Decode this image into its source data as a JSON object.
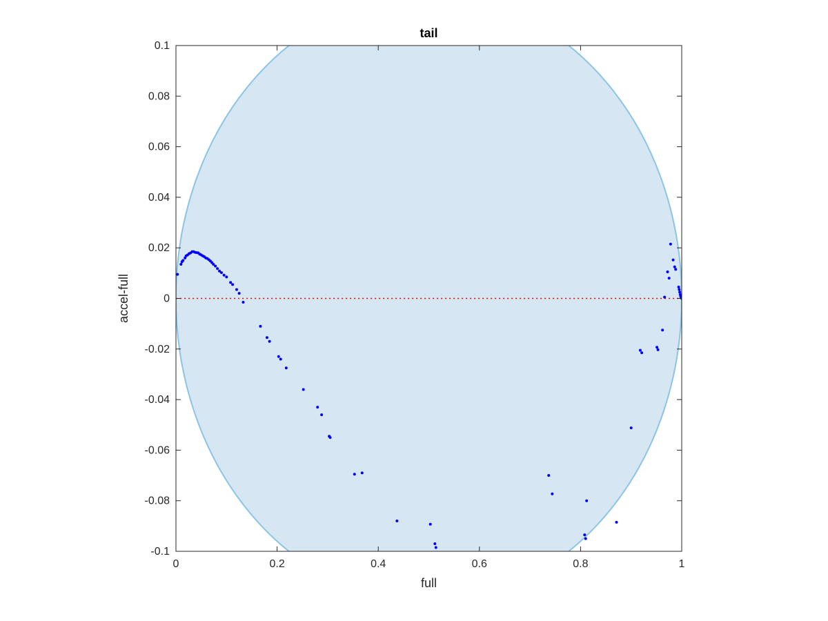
{
  "chart_data": {
    "type": "scatter",
    "title": "tail",
    "xlabel": "full",
    "ylabel": "accel-full",
    "xlim": [
      0,
      1
    ],
    "ylim": [
      -0.1,
      0.1
    ],
    "xticks": [
      0,
      0.2,
      0.4,
      0.6,
      0.8,
      1
    ],
    "xtick_labels": [
      "0",
      "0.2",
      "0.4",
      "0.6",
      "0.8",
      "1"
    ],
    "yticks": [
      0.1,
      0.08,
      0.06,
      0.04,
      0.02,
      0,
      -0.02,
      -0.04,
      -0.06,
      -0.08,
      -0.1
    ],
    "ytick_labels": [
      "0.1",
      "0.08",
      "0.06",
      "0.04",
      "0.02",
      "0",
      "-0.02",
      "-0.04",
      "-0.06",
      "-0.08",
      "-0.1"
    ],
    "grid": false,
    "reference_line": {
      "y": 0,
      "style": "dotted",
      "color": "#ff0000"
    },
    "region": {
      "shape": "ellipse",
      "center": [
        0.5,
        0
      ],
      "semi_axes": [
        0.5,
        0.12
      ],
      "fill_color": "#d6e6f3",
      "edge_color": "#8cc4e6"
    },
    "marker_color": "#0000ff",
    "points": [
      [
        0.003,
        0.0095
      ],
      [
        0.01,
        0.0135
      ],
      [
        0.012,
        0.0145
      ],
      [
        0.014,
        0.015
      ],
      [
        0.018,
        0.016
      ],
      [
        0.02,
        0.0168
      ],
      [
        0.023,
        0.0172
      ],
      [
        0.026,
        0.0177
      ],
      [
        0.029,
        0.018
      ],
      [
        0.032,
        0.0185
      ],
      [
        0.035,
        0.0185
      ],
      [
        0.038,
        0.0182
      ],
      [
        0.041,
        0.0181
      ],
      [
        0.044,
        0.018
      ],
      [
        0.047,
        0.0175
      ],
      [
        0.05,
        0.0172
      ],
      [
        0.053,
        0.0168
      ],
      [
        0.056,
        0.0165
      ],
      [
        0.059,
        0.016
      ],
      [
        0.062,
        0.0158
      ],
      [
        0.065,
        0.0153
      ],
      [
        0.068,
        0.0148
      ],
      [
        0.071,
        0.0142
      ],
      [
        0.074,
        0.0135
      ],
      [
        0.078,
        0.0128
      ],
      [
        0.082,
        0.0118
      ],
      [
        0.086,
        0.0108
      ],
      [
        0.09,
        0.0102
      ],
      [
        0.095,
        0.0092
      ],
      [
        0.1,
        0.0085
      ],
      [
        0.108,
        0.0063
      ],
      [
        0.112,
        0.0055
      ],
      [
        0.12,
        0.0035
      ],
      [
        0.125,
        0.002
      ],
      [
        0.133,
        -0.0015
      ],
      [
        0.167,
        -0.011
      ],
      [
        0.18,
        -0.0155
      ],
      [
        0.185,
        -0.017
      ],
      [
        0.203,
        -0.023
      ],
      [
        0.207,
        -0.024
      ],
      [
        0.218,
        -0.0275
      ],
      [
        0.252,
        -0.036
      ],
      [
        0.28,
        -0.043
      ],
      [
        0.288,
        -0.046
      ],
      [
        0.303,
        -0.0545
      ],
      [
        0.305,
        -0.055
      ],
      [
        0.353,
        -0.0695
      ],
      [
        0.368,
        -0.069
      ],
      [
        0.437,
        -0.088
      ],
      [
        0.503,
        -0.0893
      ],
      [
        0.512,
        -0.097
      ],
      [
        0.514,
        -0.0985
      ],
      [
        0.737,
        -0.07
      ],
      [
        0.744,
        -0.0773
      ],
      [
        0.808,
        -0.0935
      ],
      [
        0.81,
        -0.095
      ],
      [
        0.812,
        -0.08
      ],
      [
        0.871,
        -0.0885
      ],
      [
        0.9,
        -0.0512
      ],
      [
        0.918,
        -0.0205
      ],
      [
        0.921,
        -0.0215
      ],
      [
        0.951,
        -0.0193
      ],
      [
        0.953,
        -0.0203
      ],
      [
        0.962,
        -0.0125
      ],
      [
        0.966,
        0.0005
      ],
      [
        0.972,
        0.0105
      ],
      [
        0.975,
        0.008
      ],
      [
        0.978,
        0.0215
      ],
      [
        0.983,
        0.0152
      ],
      [
        0.986,
        0.0125
      ],
      [
        0.988,
        0.0115
      ],
      [
        0.994,
        0.0045
      ],
      [
        0.995,
        0.0035
      ],
      [
        0.996,
        0.0025
      ],
      [
        0.997,
        0.0015
      ],
      [
        0.998,
        0.0008
      ],
      [
        0.999,
        0.0002
      ],
      [
        1.0,
        0.0
      ]
    ]
  }
}
